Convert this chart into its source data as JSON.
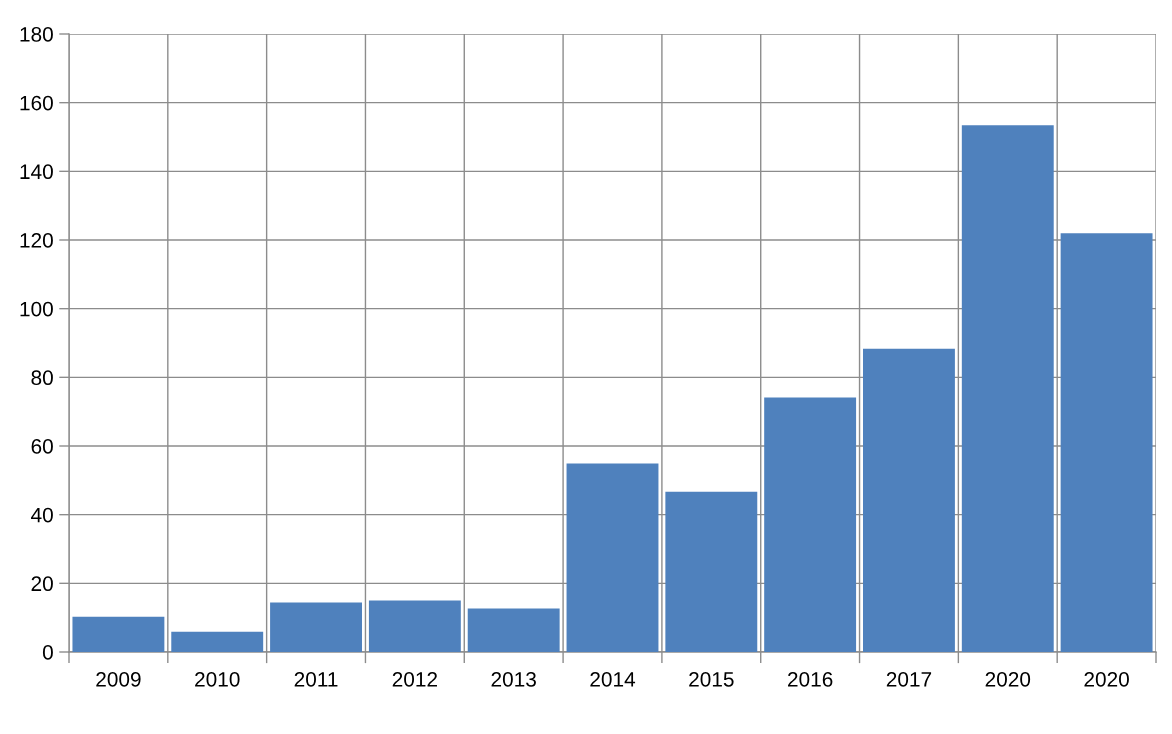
{
  "chart_data": {
    "type": "bar",
    "categories": [
      "2009",
      "2010",
      "2011",
      "2012",
      "2013",
      "2014",
      "2015",
      "2016",
      "2017",
      "2020",
      "2020"
    ],
    "values": [
      10.3,
      5.9,
      14.4,
      15.0,
      12.7,
      54.9,
      46.7,
      74.1,
      88.3,
      153.4,
      122.0
    ],
    "color": "#4f81bd",
    "ylim": [
      0,
      180
    ],
    "yticks": [
      0,
      20,
      40,
      60,
      80,
      100,
      120,
      140,
      160,
      180
    ],
    "grid": true
  }
}
